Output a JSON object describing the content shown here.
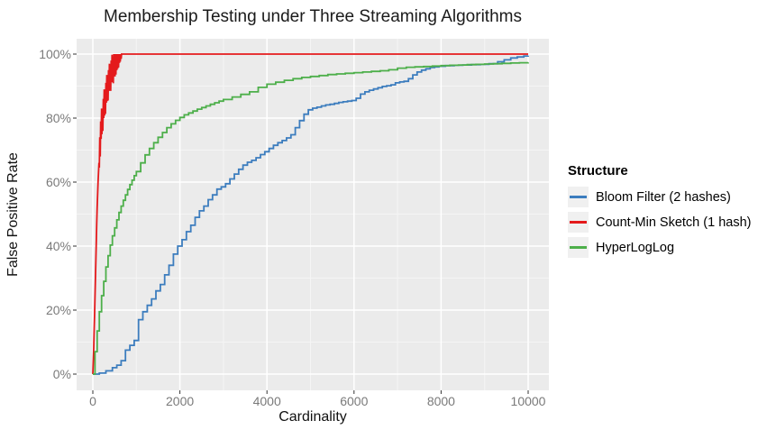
{
  "title": "Membership Testing under Three Streaming Algorithms",
  "chart_data": {
    "type": "line",
    "title": "Membership Testing under Three Streaming Algorithms",
    "xlabel": "Cardinality",
    "ylabel": "False Positive Rate",
    "xlim": [
      0,
      10000
    ],
    "ylim": [
      0,
      100
    ],
    "x_ticks": [
      0,
      2000,
      4000,
      6000,
      8000,
      10000
    ],
    "x_tick_labels": [
      "0",
      "2000",
      "4000",
      "6000",
      "8000",
      "10000"
    ],
    "x_minor_ticks": [
      1000,
      3000,
      5000,
      7000,
      9000
    ],
    "y_ticks": [
      0,
      20,
      40,
      60,
      80,
      100
    ],
    "y_tick_labels": [
      "0%",
      "20%",
      "40%",
      "60%",
      "80%",
      "100%"
    ],
    "y_minor_ticks": [
      10,
      30,
      50,
      70,
      90
    ],
    "grid": true,
    "panel_bg": "#EBEBEB",
    "grid_major_color": "#FFFFFF",
    "grid_minor_color": "#F5F5F5",
    "tick_mark_color": "#333333",
    "legend_position": "right",
    "legend_title": "Structure",
    "series": [
      {
        "name": "Bloom Filter (2 hashes)",
        "color": "#3C7DBE",
        "draw": "step",
        "points": [
          [
            0,
            0
          ],
          [
            150,
            0.3
          ],
          [
            300,
            1
          ],
          [
            450,
            2
          ],
          [
            550,
            2.8
          ],
          [
            650,
            4.2
          ],
          [
            750,
            7.5
          ],
          [
            850,
            9
          ],
          [
            950,
            10.5
          ],
          [
            1050,
            17
          ],
          [
            1150,
            19.5
          ],
          [
            1250,
            21.5
          ],
          [
            1350,
            23.5
          ],
          [
            1450,
            26
          ],
          [
            1550,
            28
          ],
          [
            1650,
            31
          ],
          [
            1750,
            34
          ],
          [
            1850,
            37.5
          ],
          [
            1950,
            40
          ],
          [
            2050,
            42
          ],
          [
            2150,
            44.5
          ],
          [
            2250,
            46.5
          ],
          [
            2350,
            49
          ],
          [
            2450,
            51
          ],
          [
            2550,
            52.5
          ],
          [
            2650,
            54.5
          ],
          [
            2750,
            56
          ],
          [
            2850,
            57.8
          ],
          [
            2950,
            58.5
          ],
          [
            3050,
            59.5
          ],
          [
            3150,
            61
          ],
          [
            3250,
            62.5
          ],
          [
            3350,
            64
          ],
          [
            3450,
            65.3
          ],
          [
            3550,
            66.2
          ],
          [
            3650,
            66.8
          ],
          [
            3750,
            67.6
          ],
          [
            3850,
            68.6
          ],
          [
            3950,
            69.5
          ],
          [
            4050,
            70.5
          ],
          [
            4150,
            71.5
          ],
          [
            4250,
            72.3
          ],
          [
            4350,
            73
          ],
          [
            4450,
            73.8
          ],
          [
            4550,
            74.8
          ],
          [
            4650,
            77
          ],
          [
            4750,
            79.2
          ],
          [
            4850,
            81.2
          ],
          [
            4950,
            82.6
          ],
          [
            5050,
            83.1
          ],
          [
            5150,
            83.4
          ],
          [
            5250,
            83.8
          ],
          [
            5350,
            84.1
          ],
          [
            5450,
            84.3
          ],
          [
            5550,
            84.6
          ],
          [
            5650,
            84.9
          ],
          [
            5750,
            85.1
          ],
          [
            5850,
            85.3
          ],
          [
            5950,
            85.5
          ],
          [
            6050,
            86.2
          ],
          [
            6150,
            87.5
          ],
          [
            6250,
            88.2
          ],
          [
            6350,
            88.7
          ],
          [
            6450,
            89.1
          ],
          [
            6550,
            89.5
          ],
          [
            6650,
            89.9
          ],
          [
            6750,
            90.1
          ],
          [
            6850,
            90.4
          ],
          [
            6950,
            91
          ],
          [
            7050,
            91.3
          ],
          [
            7150,
            91.5
          ],
          [
            7250,
            92.3
          ],
          [
            7350,
            93.5
          ],
          [
            7450,
            94.4
          ],
          [
            7550,
            95
          ],
          [
            7650,
            95.4
          ],
          [
            7750,
            95.8
          ],
          [
            7850,
            96
          ],
          [
            7950,
            96.2
          ],
          [
            8100,
            96.4
          ],
          [
            8300,
            96.5
          ],
          [
            8500,
            96.6
          ],
          [
            8700,
            96.7
          ],
          [
            8900,
            96.8
          ],
          [
            9100,
            97
          ],
          [
            9300,
            97.6
          ],
          [
            9450,
            98.2
          ],
          [
            9600,
            98.8
          ],
          [
            9750,
            99.1
          ],
          [
            9900,
            99.4
          ],
          [
            10000,
            99.5
          ]
        ]
      },
      {
        "name": "Count-Min Sketch (1 hash)",
        "color": "#E41A1C",
        "draw": "line",
        "points": [
          [
            0,
            0
          ],
          [
            10,
            4
          ],
          [
            20,
            8
          ],
          [
            30,
            13
          ],
          [
            40,
            18
          ],
          [
            50,
            24
          ],
          [
            60,
            30
          ],
          [
            70,
            36
          ],
          [
            80,
            42
          ],
          [
            90,
            47
          ],
          [
            100,
            52
          ],
          [
            110,
            56
          ],
          [
            120,
            60
          ],
          [
            130,
            63
          ],
          [
            140,
            66
          ],
          [
            150,
            64.5
          ],
          [
            160,
            74
          ],
          [
            170,
            68
          ],
          [
            180,
            79
          ],
          [
            190,
            73.5
          ],
          [
            200,
            83
          ],
          [
            210,
            75
          ],
          [
            220,
            83
          ],
          [
            230,
            76
          ],
          [
            240,
            86
          ],
          [
            250,
            80
          ],
          [
            260,
            89
          ],
          [
            270,
            80.8
          ],
          [
            280,
            88.5
          ],
          [
            290,
            81.3
          ],
          [
            300,
            91
          ],
          [
            310,
            84.8
          ],
          [
            320,
            93.5
          ],
          [
            330,
            85.3
          ],
          [
            340,
            93
          ],
          [
            350,
            85.5
          ],
          [
            360,
            95
          ],
          [
            370,
            88.5
          ],
          [
            380,
            97
          ],
          [
            390,
            88.5
          ],
          [
            400,
            96
          ],
          [
            410,
            88.5
          ],
          [
            420,
            98
          ],
          [
            430,
            91.4
          ],
          [
            440,
            99.8
          ],
          [
            450,
            91.2
          ],
          [
            460,
            98.5
          ],
          [
            470,
            90.9
          ],
          [
            480,
            100
          ],
          [
            490,
            93.5
          ],
          [
            500,
            100
          ],
          [
            510,
            93
          ],
          [
            520,
            100
          ],
          [
            530,
            93.6
          ],
          [
            540,
            100
          ],
          [
            550,
            95
          ],
          [
            560,
            100
          ],
          [
            570,
            95.4
          ],
          [
            580,
            100
          ],
          [
            590,
            95.8
          ],
          [
            600,
            100
          ],
          [
            610,
            97.2
          ],
          [
            620,
            100
          ],
          [
            630,
            97.6
          ],
          [
            640,
            100
          ],
          [
            650,
            98.5
          ],
          [
            660,
            100
          ],
          [
            10000,
            100
          ]
        ]
      },
      {
        "name": "HyperLogLog",
        "color": "#4DAF4A",
        "draw": "step",
        "points": [
          [
            0,
            0
          ],
          [
            50,
            7
          ],
          [
            100,
            13.5
          ],
          [
            150,
            19.5
          ],
          [
            200,
            24.5
          ],
          [
            250,
            29
          ],
          [
            300,
            33.5
          ],
          [
            350,
            37
          ],
          [
            400,
            40.3
          ],
          [
            450,
            43.2
          ],
          [
            500,
            45.7
          ],
          [
            550,
            48.2
          ],
          [
            600,
            50.5
          ],
          [
            650,
            52.5
          ],
          [
            700,
            54.3
          ],
          [
            750,
            56
          ],
          [
            800,
            57.7
          ],
          [
            850,
            59.2
          ],
          [
            900,
            60.6
          ],
          [
            950,
            62
          ],
          [
            1000,
            63.3
          ],
          [
            1100,
            66
          ],
          [
            1200,
            68.5
          ],
          [
            1300,
            70.5
          ],
          [
            1400,
            72.3
          ],
          [
            1500,
            74
          ],
          [
            1600,
            75.5
          ],
          [
            1700,
            77
          ],
          [
            1800,
            78.2
          ],
          [
            1900,
            79.3
          ],
          [
            2000,
            80.2
          ],
          [
            2100,
            81
          ],
          [
            2200,
            81.6
          ],
          [
            2300,
            82.2
          ],
          [
            2400,
            82.8
          ],
          [
            2500,
            83.3
          ],
          [
            2600,
            83.8
          ],
          [
            2700,
            84.3
          ],
          [
            2800,
            84.8
          ],
          [
            2900,
            85.3
          ],
          [
            3000,
            85.8
          ],
          [
            3200,
            86.6
          ],
          [
            3400,
            87.4
          ],
          [
            3600,
            88.2
          ],
          [
            3800,
            89.6
          ],
          [
            4000,
            90.6
          ],
          [
            4200,
            91.2
          ],
          [
            4400,
            91.8
          ],
          [
            4600,
            92.3
          ],
          [
            4800,
            92.7
          ],
          [
            5000,
            93
          ],
          [
            5200,
            93.3
          ],
          [
            5400,
            93.6
          ],
          [
            5600,
            93.8
          ],
          [
            5800,
            94
          ],
          [
            6000,
            94.2
          ],
          [
            6200,
            94.4
          ],
          [
            6400,
            94.6
          ],
          [
            6600,
            94.8
          ],
          [
            6800,
            95.1
          ],
          [
            7000,
            95.6
          ],
          [
            7200,
            95.9
          ],
          [
            7400,
            96
          ],
          [
            7600,
            96.1
          ],
          [
            7800,
            96.25
          ],
          [
            8000,
            96.4
          ],
          [
            8200,
            96.5
          ],
          [
            8400,
            96.6
          ],
          [
            8600,
            96.7
          ],
          [
            8800,
            96.8
          ],
          [
            9000,
            96.9
          ],
          [
            9200,
            97
          ],
          [
            9400,
            97.1
          ],
          [
            9600,
            97.2
          ],
          [
            9800,
            97.3
          ],
          [
            10000,
            97.4
          ]
        ]
      }
    ]
  }
}
